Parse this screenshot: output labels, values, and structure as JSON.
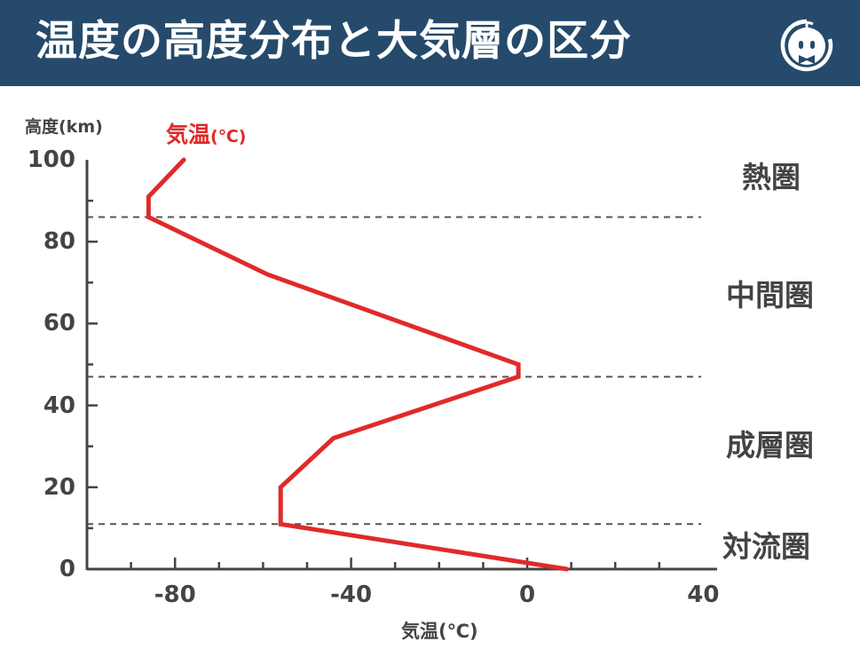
{
  "header": {
    "title": "温度の高度分布と大気層の区分",
    "logo_icon": "mascot-face-logo-icon"
  },
  "chart_data": {
    "type": "line",
    "title": "温度の高度分布と大気層の区分",
    "xlabel": "気温(℃)",
    "ylabel": "高度(km)",
    "legend": [
      "気温(℃)"
    ],
    "xlim": [
      -100,
      40
    ],
    "ylim": [
      0,
      100
    ],
    "x_tick_labels": [
      "-80",
      "-40",
      "0",
      "40"
    ],
    "x_ticks": [
      -80,
      -40,
      0,
      40
    ],
    "x_minor_step": 10,
    "y_tick_labels": [
      "0",
      "20",
      "40",
      "60",
      "80",
      "100"
    ],
    "y_ticks": [
      0,
      20,
      40,
      60,
      80,
      100
    ],
    "y_minor_step": 10,
    "series": [
      {
        "name": "気温(℃)",
        "color": "#e02a2a",
        "points": [
          {
            "temp": 9,
            "alt": 0
          },
          {
            "temp": -56,
            "alt": 11
          },
          {
            "temp": -56,
            "alt": 20
          },
          {
            "temp": -44,
            "alt": 32
          },
          {
            "temp": -2,
            "alt": 47
          },
          {
            "temp": -2,
            "alt": 50
          },
          {
            "temp": -59,
            "alt": 72
          },
          {
            "temp": -86,
            "alt": 86
          },
          {
            "temp": -86,
            "alt": 91
          },
          {
            "temp": -78,
            "alt": 100
          }
        ]
      }
    ],
    "boundaries_km": [
      11,
      47,
      86
    ],
    "layers": [
      {
        "name": "熱圏",
        "range_km": [
          86,
          100
        ]
      },
      {
        "name": "中間圏",
        "range_km": [
          47,
          86
        ]
      },
      {
        "name": "成層圏",
        "range_km": [
          11,
          47
        ]
      },
      {
        "name": "対流圏",
        "range_km": [
          0,
          11
        ]
      }
    ],
    "grid": false,
    "legend_position": "top-left"
  },
  "labels": {
    "ylabel": "高度(km)",
    "legend_main": "気温",
    "legend_unit": "(℃)",
    "xlabel": "気温(℃)"
  },
  "colors": {
    "header_bg": "#254a6b",
    "line": "#e02a2a",
    "axis": "#444444"
  }
}
